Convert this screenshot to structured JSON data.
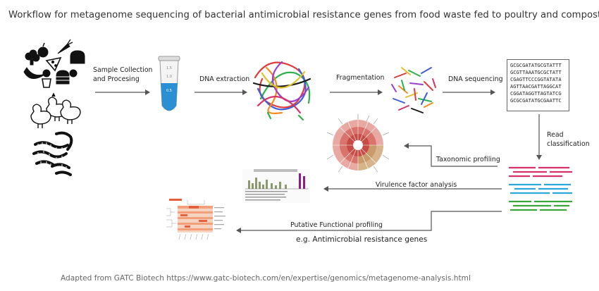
{
  "title": "Workflow for metagenome sequencing of bacterial antimicrobial resistance genes from food waste fed to poultry and composted",
  "steps": {
    "collection_line1": "Sample Collection",
    "collection_line2": "and Procesing",
    "extraction": "DNA extraction",
    "fragmentation": "Fragmentation",
    "sequencing": "DNA sequencing",
    "read_line1": "Read",
    "read_line2": "classification",
    "taxonomic": "Taxonomic profiling",
    "virulence": "Virulence factor analysis",
    "functional": "Putative Functional profiling",
    "example": "e.g. Antimicrobial resistance genes"
  },
  "sequences": [
    "GCGCGATATGCGTATTT",
    "GCGTTAAATGCGCTATT",
    "CGAGTTCCCGGTATATA",
    "AGTTAACGATTAGGCAT",
    "CGGATAGGTTAGTATCG",
    "GCGCGATATGCGAATTC"
  ],
  "tube_labels": [
    "1.5",
    "1.0",
    "0.5"
  ],
  "read_colors": [
    "#d6336c",
    "#2aa7d8",
    "#3aa63a"
  ],
  "icons": [
    "food-icon",
    "chicken-icon",
    "worm-icon",
    "tube-icon",
    "dna-tangle-icon",
    "dna-fragments-icon",
    "sunburst-chart-icon",
    "bar-chart-icon",
    "heatmap-icon"
  ],
  "footer": "Adapted from GATC Biotech https://www.gatc-biotech.com/en/expertise/genomics/metagenome-analysis.html"
}
